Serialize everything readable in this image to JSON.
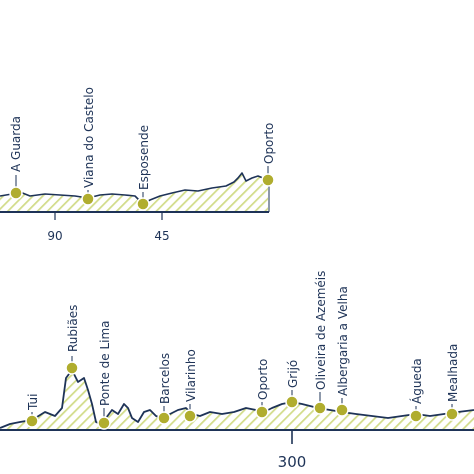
{
  "colors": {
    "profile": "#1e3357",
    "hatch": "#d2dc8a",
    "marker_fill": "#b0ad2e",
    "marker_stroke": "#ffffff",
    "text": "#1e3357"
  },
  "top_route": {
    "stops": [
      "A Guarda",
      "Viana do Castelo",
      "Esposende",
      "Oporto"
    ],
    "axis_ticks": [
      "90",
      "45"
    ]
  },
  "bottom_route": {
    "stops": [
      "Tui",
      "Rubiães",
      "Ponte de Lima",
      "Barcelos",
      "Vilarinho",
      "Oporto",
      "Grijó",
      "Oliveira de Azeméis",
      "Albergaria a Velha",
      "Águeda",
      "Mealhada"
    ],
    "axis_ticks": [
      "300"
    ]
  }
}
